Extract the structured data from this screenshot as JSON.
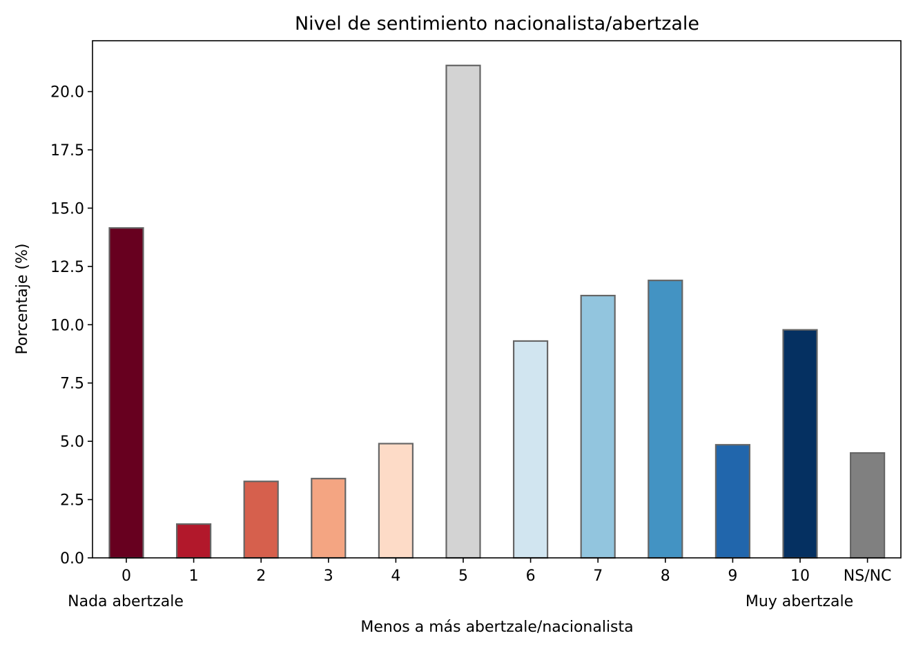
{
  "chart_data": {
    "type": "bar",
    "title": "Nivel de sentimiento nacionalista/abertzale",
    "xlabel": "Menos a más abertzale/nacionalista",
    "ylabel": "Porcentaje (%)",
    "categories": [
      "0",
      "1",
      "2",
      "3",
      "4",
      "5",
      "6",
      "7",
      "8",
      "9",
      "10",
      "NS/NC"
    ],
    "values": [
      14.15,
      1.45,
      3.28,
      3.4,
      4.9,
      21.12,
      9.3,
      11.25,
      11.9,
      4.85,
      9.78,
      4.5
    ],
    "colors": [
      "#67001f",
      "#b2182b",
      "#d6604d",
      "#f4a582",
      "#fddbc7",
      "#d3d3d3",
      "#d1e5f0",
      "#92c5de",
      "#4393c3",
      "#2166ac",
      "#053061",
      "#808080"
    ],
    "edge_color": "#666666",
    "ylim": [
      0,
      22.18
    ],
    "yticks": [
      "0.0",
      "2.5",
      "5.0",
      "7.5",
      "10.0",
      "12.5",
      "15.0",
      "17.5",
      "20.0"
    ],
    "extreme_labels": {
      "low": "Nada abertzale",
      "high": "Muy abertzale"
    },
    "grid": false,
    "legend": "none"
  }
}
